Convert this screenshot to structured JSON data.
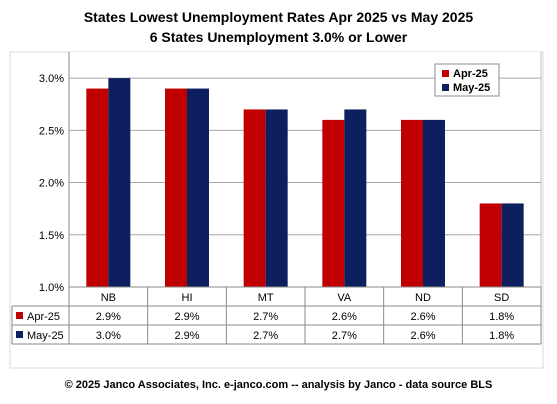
{
  "header": {
    "title_line1": "States Lowest Unemployment Rates Apr 2025 vs May 2025",
    "title_line2": "6 States  Unemployment 3.0% or Lower"
  },
  "footer": {
    "text": "© 2025 Janco Associates, Inc. e-janco.com -- analysis by Janco - data source BLS"
  },
  "colors": {
    "apr": "#c00000",
    "may": "#0d1f5e",
    "plot_bg": "#ffffff",
    "frame_bg": "#ffffff",
    "grid": "#a6a6a6"
  },
  "chart_data": {
    "type": "bar",
    "categories": [
      "NB",
      "HI",
      "MT",
      "VA",
      "ND",
      "SD"
    ],
    "series": [
      {
        "name": "Apr-25",
        "values": [
          2.9,
          2.9,
          2.7,
          2.6,
          2.6,
          1.8
        ],
        "labels": [
          "2.9%",
          "2.9%",
          "2.7%",
          "2.6%",
          "2.6%",
          "1.8%"
        ]
      },
      {
        "name": "May-25",
        "values": [
          3.0,
          2.9,
          2.7,
          2.7,
          2.6,
          1.8
        ],
        "labels": [
          "3.0%",
          "2.9%",
          "2.7%",
          "2.7%",
          "2.6%",
          "1.8%"
        ]
      }
    ],
    "yticks": [
      "1.0%",
      "1.5%",
      "2.0%",
      "2.5%",
      "3.0%"
    ],
    "ylim": [
      1.0,
      3.25
    ],
    "grid": true,
    "legend": "top-right",
    "data_table": true
  }
}
